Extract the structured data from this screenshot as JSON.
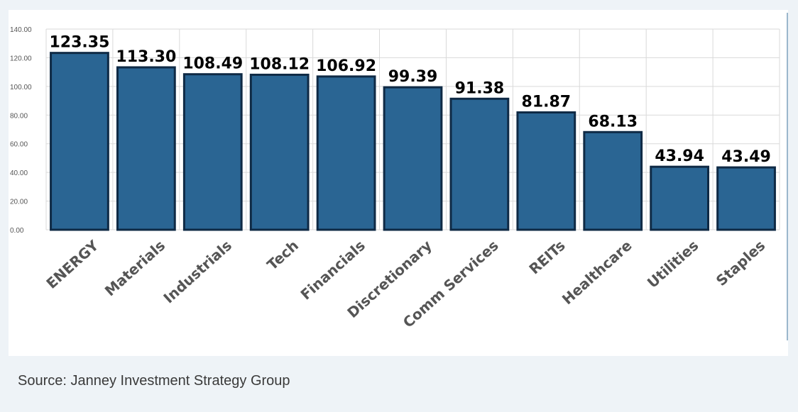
{
  "chart_data": {
    "type": "bar",
    "categories": [
      "ENERGY",
      "Materials",
      "Industrials",
      "Tech",
      "Financials",
      "Discretionary",
      "Comm Services",
      "REITs",
      "Healthcare",
      "Utilities",
      "Staples"
    ],
    "values": [
      123.35,
      113.3,
      108.49,
      108.12,
      106.92,
      99.39,
      91.38,
      81.87,
      68.13,
      43.94,
      43.49
    ],
    "value_labels": [
      "123.35",
      "113.30",
      "108.49",
      "108.12",
      "106.92",
      "99.39",
      "91.38",
      "81.87",
      "68.13",
      "43.94",
      "43.49"
    ],
    "y_ticks": [
      0,
      20,
      40,
      60,
      80,
      100,
      120,
      140
    ],
    "y_tick_labels": [
      "0.00",
      "20.00",
      "40.00",
      "60.00",
      "80.00",
      "100.00",
      "120.00",
      "140.00"
    ],
    "ylim": [
      0,
      140
    ],
    "title": "",
    "xlabel": "",
    "ylabel": "",
    "grid": true,
    "legend": "none",
    "colors": {
      "bar_fill": "#2a6593",
      "bar_stroke": "#0f2a45",
      "grid": "#d9d9d9"
    }
  },
  "source": "Source: Janney Investment Strategy Group"
}
